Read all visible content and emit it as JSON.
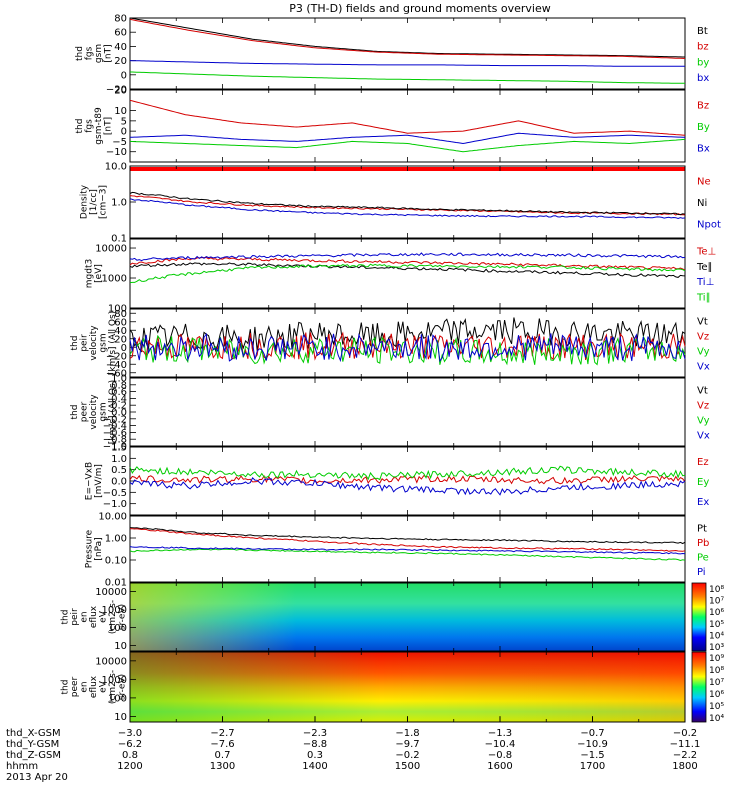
{
  "title": "P3 (TH-D) fields and ground moments overview",
  "colors": {
    "black": "#000000",
    "red": "#d40000",
    "green": "#00cc00",
    "blue": "#0000cc"
  },
  "chart_data": [
    {
      "type": "line",
      "ylabel": [
        "thd",
        "fgs",
        "gsm",
        "[nT]"
      ],
      "yticks": [
        "80",
        "60",
        "40",
        "20",
        "0",
        "−20"
      ],
      "ylim": [
        -20,
        80
      ],
      "series": [
        {
          "name": "Bt",
          "color": "#000000",
          "y": [
            80,
            65,
            50,
            40,
            33,
            30,
            29,
            28,
            27,
            25
          ]
        },
        {
          "name": "bz",
          "color": "#d40000",
          "y": [
            78,
            62,
            48,
            38,
            32,
            29,
            28,
            27,
            26,
            23
          ]
        },
        {
          "name": "by",
          "color": "#00cc00",
          "y": [
            4,
            1,
            -2,
            -4,
            -6,
            -7,
            -8,
            -9,
            -11,
            -12
          ]
        },
        {
          "name": "bx",
          "color": "#0000cc",
          "y": [
            20,
            18,
            16,
            15,
            14,
            14,
            13,
            13,
            12,
            12
          ]
        }
      ],
      "legend": [
        "Bt",
        "bz",
        "by",
        "bx"
      ]
    },
    {
      "type": "line",
      "ylabel": [
        "thd",
        "fgs",
        "gsm-t89",
        "[nT]"
      ],
      "yticks": [
        "20",
        "10",
        "5",
        "0",
        "−5",
        "−10"
      ],
      "ylim": [
        -15,
        20
      ],
      "series": [
        {
          "name": "Bz",
          "color": "#d40000",
          "y": [
            15,
            8,
            4,
            2,
            4,
            -1,
            0,
            5,
            -1,
            0,
            -2
          ]
        },
        {
          "name": "By",
          "color": "#00cc00",
          "y": [
            -5,
            -6,
            -7,
            -8,
            -5,
            -6,
            -10,
            -7,
            -5,
            -6,
            -4
          ]
        },
        {
          "name": "Bx",
          "color": "#0000cc",
          "y": [
            -3,
            -2,
            -4,
            -5,
            -3,
            -2,
            -6,
            -1,
            -3,
            -2,
            -3
          ]
        }
      ],
      "legend": [
        "Bz",
        "By",
        "Bx"
      ]
    },
    {
      "type": "line",
      "ylabel": [
        "Density",
        "[1/cc]",
        "[cm−3]"
      ],
      "yticks": [
        "10.0",
        "1.0",
        "0.1"
      ],
      "scale": "log",
      "ylim": [
        0.1,
        10
      ],
      "series": [
        {
          "name": "Ne",
          "color": "#d40000",
          "y": [
            1.5,
            1.0,
            0.8,
            0.7,
            0.65,
            0.6,
            0.55,
            0.5,
            0.48,
            0.45
          ]
        },
        {
          "name": "Ni",
          "color": "#000000",
          "y": [
            1.8,
            1.2,
            0.9,
            0.75,
            0.7,
            0.62,
            0.58,
            0.52,
            0.5,
            0.46
          ]
        },
        {
          "name": "Npot",
          "color": "#0000cc",
          "y": [
            1.2,
            0.8,
            0.6,
            0.5,
            0.45,
            0.42,
            0.4,
            0.4,
            0.38,
            0.36
          ]
        }
      ],
      "legend": [
        "Ne",
        "Ni",
        "Npot"
      ]
    },
    {
      "type": "line",
      "ylabel": [
        "mgdt3",
        "[eV]"
      ],
      "yticks": [
        "10000",
        "1000",
        "100"
      ],
      "scale": "log",
      "ylim": [
        100,
        20000
      ],
      "series": [
        {
          "name": "Te⊥",
          "color": "#d40000",
          "y": [
            3000,
            4500,
            4200,
            3800,
            3500,
            3200,
            2900,
            2600,
            2300,
            2000
          ]
        },
        {
          "name": "Te∥",
          "color": "#000000",
          "y": [
            2500,
            3000,
            2800,
            2500,
            2200,
            2000,
            1700,
            1500,
            1300,
            1100
          ]
        },
        {
          "name": "Ti⊥",
          "color": "#0000cc",
          "y": [
            4000,
            4800,
            5200,
            5500,
            6000,
            6200,
            6000,
            5800,
            5500,
            5000
          ]
        },
        {
          "name": "Ti∥",
          "color": "#00cc00",
          "y": [
            700,
            1400,
            2200,
            2500,
            2600,
            2500,
            2400,
            2300,
            2000,
            1800
          ]
        }
      ],
      "legend": [
        "Te⊥",
        "Te∥",
        "Ti⊥",
        "Ti∥"
      ]
    },
    {
      "type": "line",
      "ylabel": [
        "thd",
        "peir",
        "velocity",
        "gsm",
        "[km/s] (All Qs)"
      ],
      "yticks": [
        "80",
        "60",
        "40",
        "20",
        "0",
        "−20",
        "−40",
        "−60"
      ],
      "ylim": [
        -70,
        90
      ],
      "series": [
        {
          "name": "Vt",
          "color": "#000000",
          "y": [
            20,
            25,
            20,
            30,
            25,
            35,
            40,
            35,
            30,
            30
          ]
        },
        {
          "name": "Vz",
          "color": "#d40000",
          "y": [
            5,
            0,
            5,
            3,
            5,
            0,
            5,
            3,
            0,
            2
          ]
        },
        {
          "name": "Vy",
          "color": "#00cc00",
          "y": [
            -5,
            -5,
            -10,
            -5,
            -8,
            -10,
            -15,
            -10,
            -8,
            -5
          ]
        },
        {
          "name": "Vx",
          "color": "#0000cc",
          "y": [
            0,
            2,
            -2,
            0,
            2,
            -2,
            0,
            2,
            -2,
            0
          ]
        }
      ],
      "legend": [
        "Vt",
        "Vz",
        "Vy",
        "Vx"
      ]
    },
    {
      "type": "line",
      "ylabel": [
        "thd",
        "peer",
        "velocity",
        "gsm",
        "[km/s] (All Qs)"
      ],
      "yticks": [
        "1.0",
        "0.8",
        "0.6",
        "0.4",
        "0.2",
        "0.0",
        "−0.2",
        "−0.4",
        "−0.6",
        "−0.8",
        "−1.0"
      ],
      "ylim": [
        -1,
        1
      ],
      "series": [],
      "legend": [
        "Vt",
        "Vz",
        "Vy",
        "Vx"
      ]
    },
    {
      "type": "line",
      "ylabel": [
        "E=−VxB",
        "[mV/m]"
      ],
      "yticks": [
        "1.5",
        "1.0",
        "0.5",
        "0.0",
        "−0.5",
        "−1.0"
      ],
      "ylim": [
        -1.5,
        1.5
      ],
      "series": [
        {
          "name": "Ez",
          "color": "#d40000",
          "y": [
            0.1,
            0.05,
            0.1,
            0,
            0.05,
            0.1,
            0.05,
            0,
            0.1,
            0.05
          ]
        },
        {
          "name": "Ey",
          "color": "#00cc00",
          "y": [
            0.5,
            0.4,
            0.3,
            0.3,
            0.2,
            0.3,
            0.4,
            0.5,
            0.4,
            0.3
          ]
        },
        {
          "name": "Ex",
          "color": "#0000cc",
          "y": [
            -0.1,
            -0.2,
            0,
            -0.1,
            -0.3,
            -0.4,
            -0.5,
            -0.3,
            -0.2,
            -0.1
          ]
        }
      ],
      "legend": [
        "Ez",
        "Ey",
        "Ex"
      ]
    },
    {
      "type": "line",
      "ylabel": [
        "Pressure",
        "[nPa]"
      ],
      "yticks": [
        "10.00",
        "1.00",
        "0.10",
        "0.01"
      ],
      "scale": "log",
      "ylim": [
        0.01,
        10
      ],
      "series": [
        {
          "name": "Pt",
          "color": "#000000",
          "y": [
            3,
            1.8,
            1.3,
            1.1,
            0.95,
            0.85,
            0.8,
            0.7,
            0.65,
            0.6
          ]
        },
        {
          "name": "Pb",
          "color": "#d40000",
          "y": [
            2.6,
            1.5,
            1.0,
            0.7,
            0.5,
            0.4,
            0.35,
            0.33,
            0.3,
            0.25
          ]
        },
        {
          "name": "Pe",
          "color": "#00cc00",
          "y": [
            0.25,
            0.3,
            0.28,
            0.25,
            0.22,
            0.2,
            0.17,
            0.14,
            0.12,
            0.1
          ]
        },
        {
          "name": "Pi",
          "color": "#0000cc",
          "y": [
            0.4,
            0.35,
            0.32,
            0.3,
            0.3,
            0.28,
            0.26,
            0.24,
            0.22,
            0.2
          ]
        }
      ],
      "legend": [
        "Pt",
        "Pb",
        "Pe",
        "Pi"
      ]
    },
    {
      "type": "heatmap",
      "ylabel": [
        "thd",
        "peir",
        "en",
        "eflux",
        "eV",
        "(cm2-s-",
        "sr-eV)"
      ],
      "yticks": [
        "10000",
        "1000",
        "100",
        "10"
      ],
      "scale": "log",
      "ylim": [
        5,
        30000
      ],
      "colorbar": {
        "labels": [
          "10⁸",
          "10⁷",
          "10⁶",
          "10⁵",
          "10⁴",
          "10³"
        ],
        "range": [
          1000,
          100000000
        ]
      }
    },
    {
      "type": "heatmap",
      "ylabel": [
        "thd",
        "peer",
        "en",
        "eflux",
        "eV",
        "(cm2-s-",
        "sr-eV)"
      ],
      "yticks": [
        "10000",
        "1000",
        "100",
        "10"
      ],
      "scale": "log",
      "ylim": [
        5,
        30000
      ],
      "colorbar": {
        "labels": [
          "10⁹",
          "10⁸",
          "10⁷",
          "10⁶",
          "10⁵",
          "10⁴"
        ],
        "range": [
          10000,
          1000000000
        ]
      }
    }
  ],
  "x_axis": {
    "ticks": [
      "1200",
      "1300",
      "1400",
      "1500",
      "1600",
      "1700",
      "1800"
    ],
    "rows": [
      {
        "label": "thd_X-GSM",
        "values": [
          "−3.0",
          "−2.7",
          "−2.3",
          "−1.8",
          "−1.3",
          "−0.7",
          "−0.2"
        ]
      },
      {
        "label": "thd_Y-GSM",
        "values": [
          "−6.2",
          "−7.6",
          "−8.8",
          "−9.7",
          "−10.4",
          "−10.9",
          "−11.1"
        ]
      },
      {
        "label": "thd_Z-GSM",
        "values": [
          "0.8",
          "0.7",
          "0.3",
          "−0.2",
          "−0.8",
          "−1.5",
          "−2.2"
        ]
      },
      {
        "label": "hhmm",
        "values": [
          "1200",
          "1300",
          "1400",
          "1500",
          "1600",
          "1700",
          "1800"
        ]
      }
    ],
    "date": "2013 Apr 20"
  }
}
